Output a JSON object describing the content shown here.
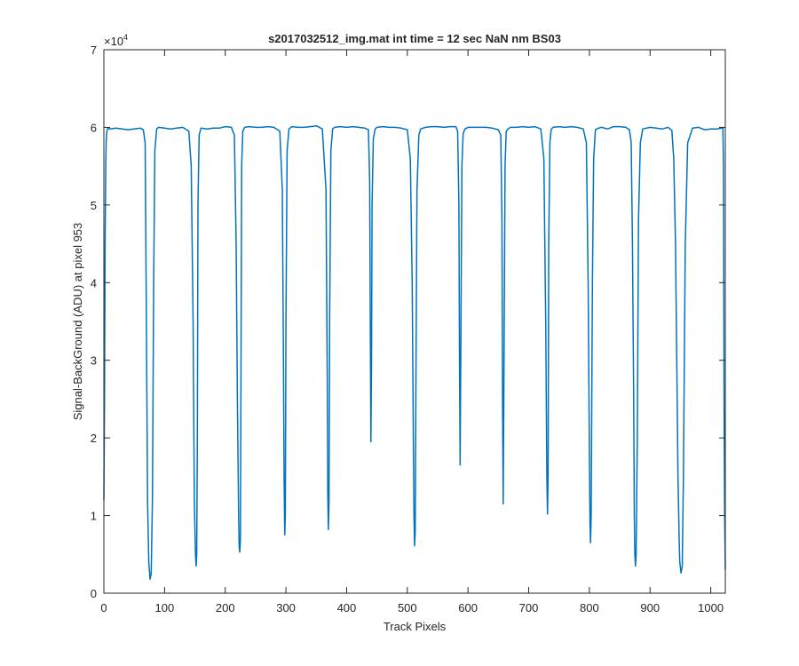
{
  "chart_data": {
    "type": "line",
    "title": "s2017032512_img.mat int time = 12 sec  NaN nm BS03",
    "xlabel": "Track Pixels",
    "ylabel": "Signal-BackGround (ADU) at pixel 953",
    "y_exponent_label": "×10",
    "y_exponent_power": "4",
    "xlim": [
      0,
      1024
    ],
    "ylim": [
      0,
      70000
    ],
    "x_ticks": [
      0,
      100,
      200,
      300,
      400,
      500,
      600,
      700,
      800,
      900,
      1000
    ],
    "y_ticks": [
      0,
      10000,
      20000,
      30000,
      40000,
      50000,
      60000,
      70000
    ],
    "x_tick_labels": [
      "0",
      "100",
      "200",
      "300",
      "400",
      "500",
      "600",
      "700",
      "800",
      "900",
      "1000"
    ],
    "y_tick_labels": [
      "0",
      "1",
      "2",
      "3",
      "4",
      "5",
      "6",
      "7"
    ],
    "grid": false,
    "line_color": "#0072bd",
    "baseline": 60000,
    "series": [
      {
        "x": [
          0,
          1,
          2,
          3,
          4,
          5,
          6,
          8,
          10,
          20,
          30,
          40,
          50,
          60,
          65,
          68,
          70,
          72,
          74,
          76,
          78,
          80,
          82,
          84,
          87,
          90,
          100,
          110,
          120,
          130,
          140,
          144,
          147,
          149,
          151,
          152,
          153,
          154,
          155,
          157,
          160,
          170,
          180,
          190,
          200,
          210,
          215,
          218,
          220,
          222,
          223,
          224,
          225,
          226,
          227,
          229,
          232,
          240,
          250,
          260,
          270,
          280,
          290,
          294,
          296,
          297,
          298,
          299,
          300,
          302,
          305,
          310,
          320,
          330,
          340,
          350,
          360,
          366,
          368,
          369,
          370,
          371,
          372,
          374,
          377,
          380,
          390,
          400,
          410,
          420,
          430,
          436,
          438,
          439,
          440,
          441,
          442,
          444,
          447,
          450,
          460,
          470,
          480,
          490,
          500,
          505,
          508,
          510,
          511,
          512,
          513,
          514,
          516,
          519,
          522,
          530,
          540,
          550,
          560,
          570,
          580,
          583,
          585,
          586,
          587,
          588,
          590,
          592,
          595,
          600,
          610,
          620,
          630,
          640,
          650,
          654,
          656,
          657,
          658,
          659,
          661,
          663,
          666,
          670,
          680,
          690,
          700,
          710,
          720,
          725,
          728,
          730,
          731,
          732,
          733,
          735,
          737,
          740,
          750,
          760,
          770,
          780,
          790,
          795,
          798,
          800,
          801,
          802,
          803,
          805,
          807,
          810,
          815,
          820,
          830,
          840,
          850,
          860,
          866,
          869,
          871,
          873,
          874,
          875,
          876,
          877,
          879,
          881,
          884,
          888,
          900,
          910,
          920,
          930,
          936,
          939,
          942,
          944,
          946,
          948,
          949,
          951,
          953,
          955,
          958,
          962,
          970,
          980,
          990,
          1000,
          1010,
          1018,
          1020,
          1021,
          1022,
          1023,
          1024
        ],
        "y": [
          12000,
          25000,
          45000,
          55000,
          58500,
          59500,
          59800,
          59900,
          59800,
          59900,
          59800,
          59700,
          59800,
          59900,
          59700,
          58000,
          35000,
          12000,
          4000,
          1800,
          2500,
          12000,
          40000,
          57000,
          59800,
          60000,
          59900,
          59800,
          59900,
          60000,
          59500,
          55000,
          35000,
          12000,
          5000,
          3500,
          5000,
          20000,
          50000,
          59000,
          59900,
          59800,
          59900,
          59900,
          60100,
          60000,
          59000,
          45000,
          25000,
          10000,
          6000,
          5300,
          7000,
          30000,
          55000,
          59500,
          60000,
          60100,
          60000,
          60000,
          60100,
          60000,
          59500,
          52000,
          30000,
          15000,
          7500,
          10000,
          35000,
          57000,
          59800,
          60100,
          60000,
          60000,
          60100,
          60200,
          59800,
          52000,
          28000,
          13000,
          8200,
          12000,
          35000,
          57000,
          59800,
          60000,
          60100,
          60000,
          60100,
          60000,
          59900,
          59700,
          53000,
          35000,
          19500,
          30000,
          50000,
          58500,
          59800,
          60000,
          60100,
          60000,
          60000,
          59900,
          59700,
          56000,
          40000,
          20000,
          10000,
          6100,
          8000,
          25000,
          52000,
          59000,
          59800,
          60000,
          60100,
          60100,
          60000,
          60100,
          60100,
          59500,
          50000,
          30000,
          16500,
          30000,
          55000,
          59200,
          59800,
          60000,
          60000,
          60000,
          60000,
          59900,
          59700,
          59000,
          48000,
          25000,
          11500,
          25000,
          55000,
          59500,
          59800,
          60000,
          60000,
          60100,
          60000,
          60100,
          59800,
          56000,
          35000,
          15000,
          10200,
          15000,
          45000,
          58000,
          59700,
          60000,
          60100,
          60000,
          60100,
          60000,
          59800,
          58000,
          40000,
          18000,
          9000,
          6500,
          10000,
          40000,
          56000,
          59700,
          59900,
          60000,
          59800,
          60100,
          60100,
          60000,
          59700,
          58000,
          45000,
          25000,
          10000,
          5000,
          3500,
          5000,
          20000,
          48000,
          58000,
          59800,
          60000,
          59900,
          59800,
          60000,
          59600,
          56000,
          45000,
          30000,
          15000,
          7000,
          4000,
          2600,
          3500,
          15000,
          45000,
          58000,
          59900,
          60000,
          59700,
          59800,
          59800,
          59900,
          59900,
          55000,
          25000,
          10000,
          3000
        ]
      }
    ]
  }
}
